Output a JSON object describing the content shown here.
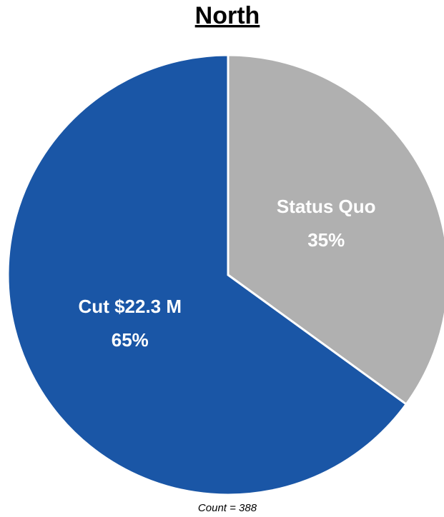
{
  "chart_data": {
    "type": "pie",
    "title": "North",
    "categories": [
      "Status Quo",
      "Cut $22.3 M"
    ],
    "values": [
      35,
      65
    ],
    "value_labels": [
      "35%",
      "65%"
    ],
    "colors": [
      "#b0b0b0",
      "#1a56a6"
    ],
    "footnote": "Count = 388"
  }
}
